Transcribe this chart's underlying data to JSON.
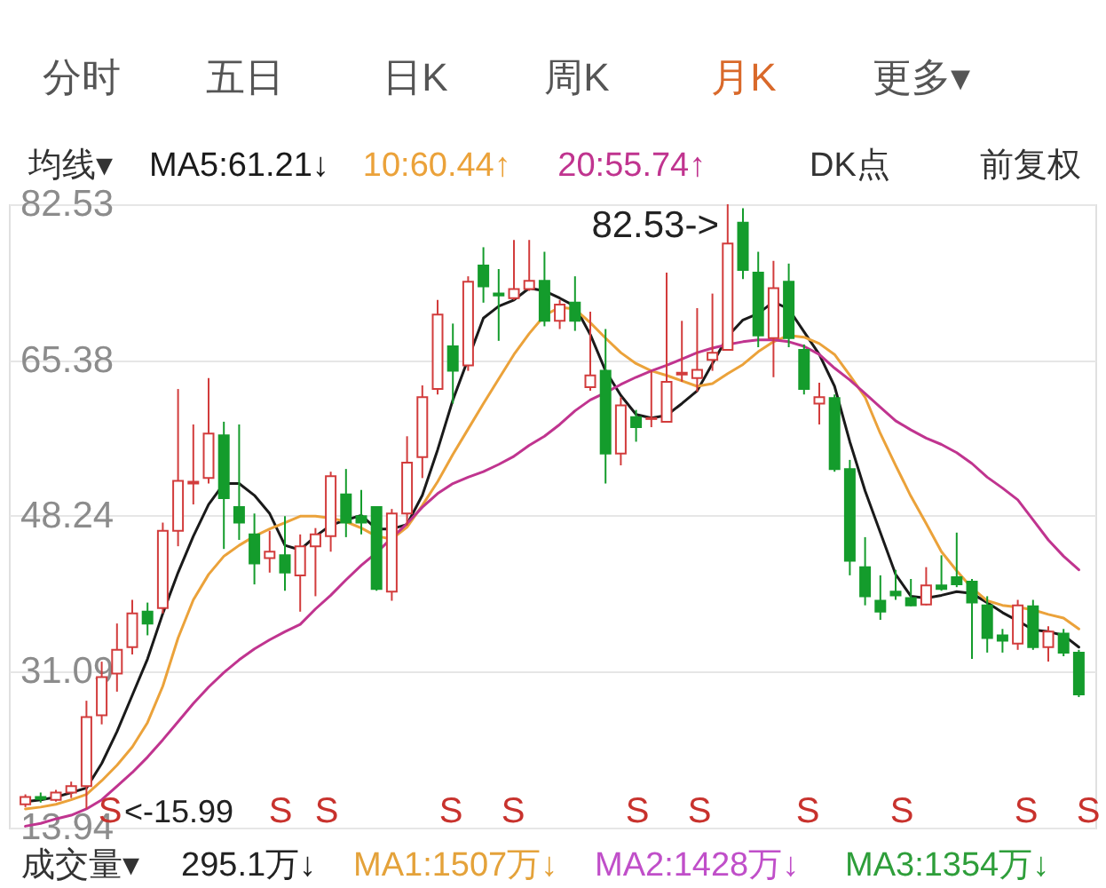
{
  "chart_data": {
    "type": "candlestick",
    "categories": [
      null,
      null,
      null,
      null,
      null,
      null,
      null,
      null,
      null,
      null,
      null,
      null,
      null,
      null,
      null,
      null,
      null,
      null,
      null,
      null,
      null,
      null,
      null,
      null,
      null,
      null,
      null,
      null,
      null,
      null,
      null,
      null,
      null,
      null,
      null,
      null,
      null,
      null,
      null,
      null,
      null,
      null,
      null,
      null,
      null,
      null,
      null,
      null,
      null,
      null,
      null,
      null,
      null,
      null,
      null,
      null,
      null,
      null,
      null,
      null,
      null,
      null,
      null,
      null,
      null,
      null,
      null,
      null,
      null,
      null
    ],
    "ohlc": [
      [
        16.5,
        17.6,
        16.2,
        17.3
      ],
      [
        17.3,
        17.8,
        16.7,
        17.1
      ],
      [
        17.0,
        18.1,
        16.8,
        17.8
      ],
      [
        17.8,
        19.0,
        17.2,
        18.5
      ],
      [
        18.5,
        27.9,
        15.99,
        26.1
      ],
      [
        26.3,
        32.2,
        25.3,
        30.5
      ],
      [
        30.9,
        36.4,
        28.9,
        33.5
      ],
      [
        33.8,
        39.0,
        33.0,
        37.5
      ],
      [
        37.7,
        38.7,
        35.1,
        36.4
      ],
      [
        38.1,
        47.5,
        37.5,
        46.6
      ],
      [
        46.6,
        62.2,
        44.9,
        52.1
      ],
      [
        51.8,
        58.3,
        49.5,
        52.0
      ],
      [
        52.4,
        63.4,
        51.8,
        57.3
      ],
      [
        57.1,
        58.6,
        44.6,
        50.2
      ],
      [
        49.2,
        58.3,
        45.6,
        47.5
      ],
      [
        46.2,
        48.5,
        40.7,
        43.0
      ],
      [
        43.6,
        46.6,
        42.0,
        44.3
      ],
      [
        43.9,
        48.2,
        40.0,
        42.0
      ],
      [
        41.7,
        46.2,
        37.7,
        44.9
      ],
      [
        44.9,
        46.9,
        39.4,
        46.2
      ],
      [
        46.0,
        53.1,
        44.3,
        52.6
      ],
      [
        50.6,
        53.4,
        45.9,
        47.5
      ],
      [
        48.2,
        51.1,
        46.2,
        47.5
      ],
      [
        49.2,
        49.2,
        40.0,
        40.2
      ],
      [
        39.9,
        49.0,
        38.9,
        48.5
      ],
      [
        48.5,
        57.0,
        47.2,
        54.1
      ],
      [
        54.7,
        62.6,
        52.4,
        61.3
      ],
      [
        62.2,
        72.0,
        61.6,
        70.4
      ],
      [
        66.9,
        69.4,
        60.6,
        64.2
      ],
      [
        64.8,
        74.6,
        64.2,
        74.0
      ],
      [
        75.8,
        77.8,
        71.7,
        73.5
      ],
      [
        72.7,
        75.4,
        67.5,
        72.5
      ],
      [
        72.2,
        78.6,
        72.0,
        73.2
      ],
      [
        73.2,
        78.6,
        73.0,
        74.1
      ],
      [
        74.1,
        77.3,
        69.1,
        69.7
      ],
      [
        69.7,
        72.0,
        68.8,
        71.5
      ],
      [
        71.7,
        74.6,
        68.6,
        69.7
      ],
      [
        62.4,
        70.7,
        62.0,
        63.7
      ],
      [
        64.2,
        68.8,
        51.8,
        55.1
      ],
      [
        55.1,
        61.3,
        53.8,
        60.4
      ],
      [
        59.1,
        59.9,
        56.4,
        58.0
      ],
      [
        58.9,
        64.2,
        58.0,
        59.0
      ],
      [
        58.6,
        75.0,
        58.6,
        63.0
      ],
      [
        63.8,
        69.7,
        63.0,
        64.0
      ],
      [
        63.4,
        71.1,
        61.9,
        64.3
      ],
      [
        65.4,
        72.7,
        64.2,
        66.2
      ],
      [
        66.5,
        82.53,
        66.5,
        78.2
      ],
      [
        80.5,
        82.1,
        74.3,
        75.3
      ],
      [
        75.0,
        77.3,
        66.8,
        68.1
      ],
      [
        67.8,
        76.3,
        63.5,
        73.3
      ],
      [
        74.0,
        76.0,
        66.8,
        67.8
      ],
      [
        66.5,
        67.1,
        61.6,
        62.2
      ],
      [
        60.6,
        62.9,
        58.3,
        61.3
      ],
      [
        61.2,
        61.6,
        53.1,
        53.4
      ],
      [
        53.4,
        54.4,
        41.7,
        43.3
      ],
      [
        42.6,
        45.9,
        38.4,
        39.4
      ],
      [
        38.9,
        41.7,
        36.8,
        37.7
      ],
      [
        39.9,
        42.3,
        39.0,
        39.5
      ],
      [
        39.2,
        41.3,
        38.3,
        38.4
      ],
      [
        38.5,
        42.6,
        38.4,
        40.6
      ],
      [
        40.6,
        43.9,
        40.0,
        40.2
      ],
      [
        41.5,
        46.4,
        40.4,
        40.7
      ],
      [
        41.0,
        41.3,
        32.5,
        38.7
      ],
      [
        38.4,
        39.4,
        33.2,
        34.8
      ],
      [
        35.1,
        35.8,
        33.2,
        34.5
      ],
      [
        34.2,
        39.0,
        33.5,
        38.4
      ],
      [
        38.3,
        39.0,
        33.5,
        33.8
      ],
      [
        33.8,
        36.1,
        32.2,
        35.5
      ],
      [
        35.3,
        35.8,
        32.8,
        33.2
      ],
      [
        33.2,
        33.5,
        28.3,
        28.6
      ]
    ],
    "colors": [
      "#d23c3c",
      "#149c2c",
      "#d23c3c",
      "#d23c3c",
      "#d23c3c",
      "#d23c3c",
      "#d23c3c",
      "#d23c3c",
      "#149c2c",
      "#d23c3c",
      "#d23c3c",
      "#d23c3c",
      "#d23c3c",
      "#149c2c",
      "#149c2c",
      "#149c2c",
      "#d23c3c",
      "#149c2c",
      "#d23c3c",
      "#d23c3c",
      "#d23c3c",
      "#149c2c",
      "#149c2c",
      "#149c2c",
      "#d23c3c",
      "#d23c3c",
      "#d23c3c",
      "#d23c3c",
      "#149c2c",
      "#d23c3c",
      "#149c2c",
      "#149c2c",
      "#d23c3c",
      "#d23c3c",
      "#149c2c",
      "#d23c3c",
      "#149c2c",
      "#d23c3c",
      "#149c2c",
      "#d23c3c",
      "#149c2c",
      "#d23c3c",
      "#d23c3c",
      "#d23c3c",
      "#d23c3c",
      "#d23c3c",
      "#d23c3c",
      "#149c2c",
      "#149c2c",
      "#d23c3c",
      "#149c2c",
      "#149c2c",
      "#d23c3c",
      "#149c2c",
      "#149c2c",
      "#149c2c",
      "#149c2c",
      "#149c2c",
      "#149c2c",
      "#d23c3c",
      "#149c2c",
      "#149c2c",
      "#149c2c",
      "#149c2c",
      "#149c2c",
      "#d23c3c",
      "#149c2c",
      "#d23c3c",
      "#149c2c",
      "#149c2c"
    ],
    "series": [
      {
        "name": "MA5:61.21↓",
        "type": "line",
        "color": "#1a1a1a",
        "values": [
          16.8,
          17.0,
          17.3,
          17.8,
          18.3,
          21.0,
          24.5,
          28.5,
          32.5,
          37.5,
          42.0,
          46.0,
          49.5,
          51.8,
          51.8,
          50.5,
          48.5,
          45.0,
          44.5,
          46.0,
          47.2,
          47.8,
          48.3,
          46.8,
          46.8,
          47.3,
          50.5,
          55.5,
          61.0,
          65.5,
          70.0,
          71.3,
          72.0,
          73.3,
          73.0,
          72.2,
          71.3,
          68.2,
          64.2,
          61.5,
          59.4,
          59.0,
          59.3,
          60.6,
          62.0,
          65.0,
          68.0,
          69.8,
          70.5,
          71.8,
          71.0,
          68.5,
          66.0,
          62.5,
          56.4,
          51.0,
          46.4,
          41.8,
          39.4,
          39.2,
          39.5,
          39.9,
          39.7,
          38.7,
          37.6,
          36.7,
          35.7,
          35.5,
          35.1,
          33.8
        ]
      },
      {
        "name": "10:60.44↑",
        "type": "line",
        "color": "#eba23a",
        "values": [
          16.0,
          16.2,
          16.5,
          17.0,
          17.6,
          19.1,
          20.8,
          22.8,
          25.5,
          29.5,
          34.8,
          39.0,
          41.8,
          43.8,
          45.0,
          46.0,
          46.8,
          47.5,
          48.2,
          48.2,
          48.0,
          47.6,
          46.9,
          46.0,
          45.7,
          47.0,
          49.4,
          52.0,
          55.0,
          57.8,
          60.6,
          63.3,
          66.0,
          68.3,
          70.3,
          71.2,
          71.0,
          69.5,
          67.8,
          66.2,
          65.0,
          64.2,
          63.7,
          63.1,
          62.5,
          62.8,
          63.9,
          64.9,
          66.3,
          67.4,
          68.1,
          67.9,
          67.2,
          66.0,
          63.7,
          61.3,
          57.3,
          53.8,
          50.4,
          47.4,
          44.3,
          42.2,
          40.3,
          38.9,
          38.4,
          38.2,
          37.9,
          37.4,
          37.0,
          35.8
        ]
      },
      {
        "name": "20:55.74↑",
        "type": "line",
        "color": "#c0348f",
        "values": [
          14.1,
          14.4,
          14.9,
          15.3,
          16.0,
          17.0,
          18.5,
          20.0,
          21.7,
          23.6,
          25.6,
          27.6,
          29.4,
          31.0,
          32.4,
          33.6,
          34.6,
          35.5,
          36.3,
          38.0,
          39.5,
          41.2,
          42.8,
          44.2,
          45.8,
          47.4,
          49.2,
          50.7,
          51.8,
          52.5,
          53.1,
          53.9,
          54.8,
          56.0,
          57.0,
          58.3,
          59.8,
          61.0,
          61.8,
          62.7,
          63.5,
          64.2,
          64.8,
          65.5,
          66.2,
          66.7,
          67.1,
          67.4,
          67.6,
          67.6,
          67.4,
          66.9,
          66.0,
          64.5,
          63.2,
          61.7,
          60.2,
          58.7,
          57.7,
          56.8,
          56.1,
          55.2,
          54.0,
          52.5,
          51.3,
          50.0,
          47.8,
          45.6,
          43.8,
          42.3
        ]
      }
    ],
    "ylim": [
      13.94,
      82.53
    ],
    "yticks": [
      82.53,
      65.38,
      48.24,
      31.09,
      13.94
    ],
    "grid": "y",
    "legend": "top",
    "tick_labels": "y",
    "annotations": [
      "82.53->",
      "<-15.99",
      "S",
      "S",
      "S",
      "S",
      "S",
      "S",
      "S",
      "S",
      "S",
      "S",
      "S",
      "分时",
      "五日",
      "日K",
      "周K",
      "月K",
      "更多▾",
      "均线▾",
      "DK点",
      "前复权",
      "成交量▾",
      "295.1万↓",
      "MA1:1507万↓",
      "MA2:1428万↓",
      "MA3:1354万↓"
    ]
  }
}
